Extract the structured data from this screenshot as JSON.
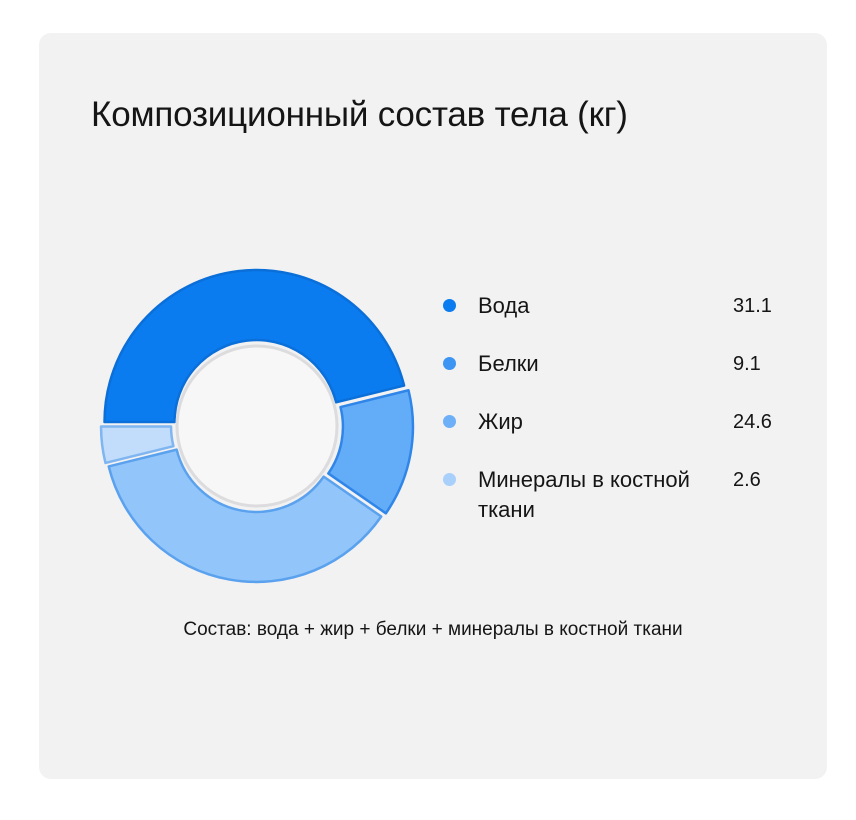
{
  "title": "Композиционный состав тела (кг)",
  "footnote": "Состав: вода + жир + белки + минералы в костной ткани",
  "chart_data": {
    "type": "pie",
    "variant": "donut",
    "title": "Композиционный состав тела (кг)",
    "legend_position": "right",
    "categories": [
      "Вода",
      "Белки",
      "Жир",
      "Минералы в костной ткани"
    ],
    "values": [
      31.1,
      9.1,
      24.6,
      2.6
    ],
    "value_labels": [
      "31.1",
      "9.1",
      "24.6",
      "2.6"
    ],
    "colors": [
      "#0a7cf0",
      "#3d95f3",
      "#6db0f7",
      "#a9d0fa"
    ],
    "outline_colors": [
      "#0a6fd8",
      "#2f86e8",
      "#5aa1ee",
      "#7fb5f0"
    ],
    "fill_colors": [
      "#0a7cf0",
      "#63acf8",
      "#92c5fa",
      "#c2ddfb"
    ]
  }
}
